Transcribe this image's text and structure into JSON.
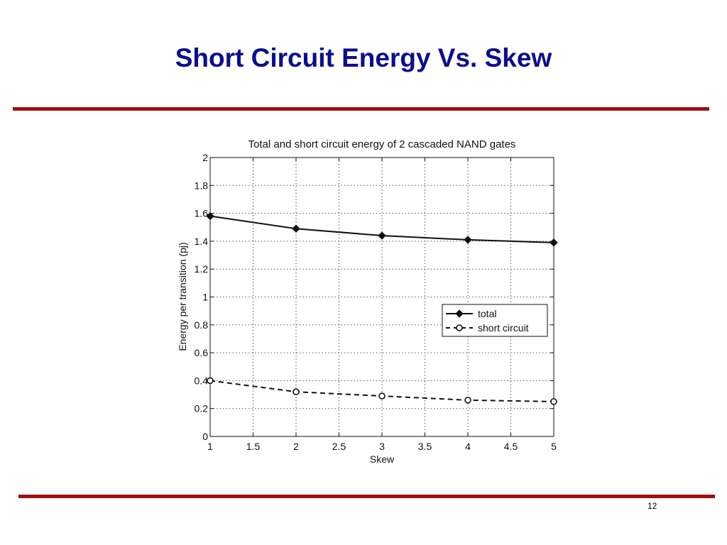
{
  "slide": {
    "title": "Short Circuit Energy Vs. Skew",
    "page_number": "12",
    "title_color": "#0d0d8f",
    "rule_color": "#a01010"
  },
  "chart_data": {
    "type": "line",
    "title": "Total and short circuit energy of 2 cascaded NAND gates",
    "xlabel": "Skew",
    "ylabel": "Energy per transition (pj)",
    "xlim": [
      1,
      5
    ],
    "ylim": [
      0,
      2
    ],
    "xticks": [
      "1",
      "1.5",
      "2",
      "2.5",
      "3",
      "3.5",
      "4",
      "4.5",
      "5"
    ],
    "yticks": [
      "0",
      "0.2",
      "0.4",
      "0.6",
      "0.8",
      "1",
      "1.2",
      "1.4",
      "1.6",
      "1.8",
      "2"
    ],
    "grid": true,
    "legend_position": "center-right",
    "series": [
      {
        "name": "total",
        "x": [
          1,
          2,
          3,
          4,
          5
        ],
        "y": [
          1.58,
          1.49,
          1.44,
          1.41,
          1.39
        ],
        "line_style": "solid",
        "marker": "diamond",
        "color": "#111111"
      },
      {
        "name": "short circuit",
        "x": [
          1,
          2,
          3,
          4,
          5
        ],
        "y": [
          0.4,
          0.32,
          0.29,
          0.26,
          0.25
        ],
        "line_style": "dashed",
        "marker": "circle",
        "color": "#111111"
      }
    ]
  }
}
